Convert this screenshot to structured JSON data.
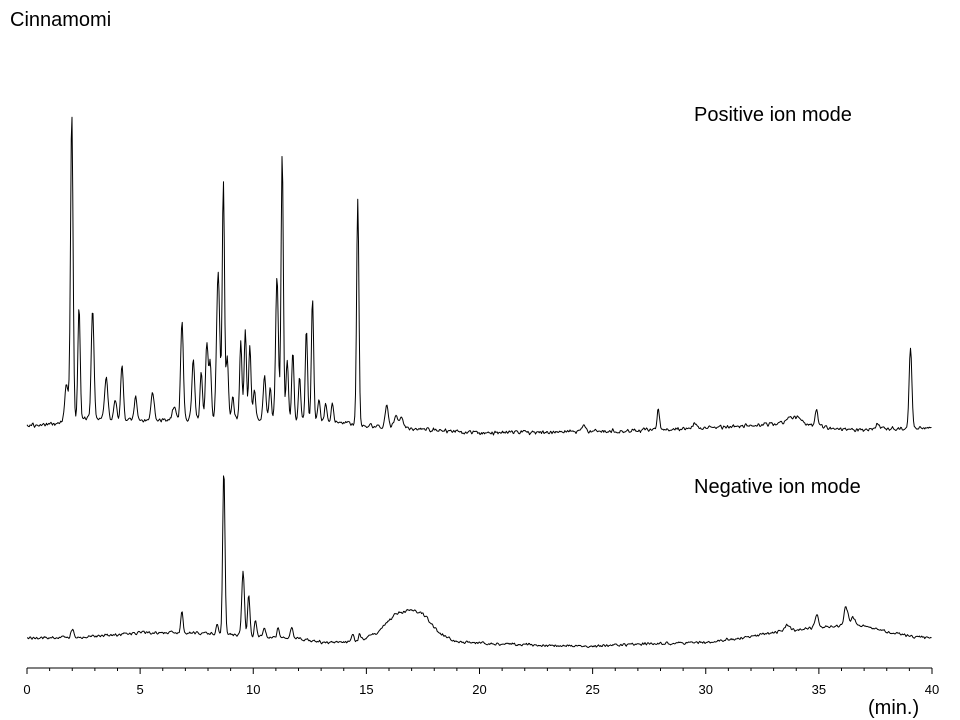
{
  "chart_data": {
    "type": "line",
    "title": "Cinnamomi",
    "xlabel": "(min.)",
    "xlim": [
      0,
      40
    ],
    "x_ticks": [
      0,
      5,
      10,
      15,
      20,
      25,
      30,
      35,
      40
    ],
    "ylim": [
      0,
      100
    ],
    "grid": false,
    "legend": "none",
    "series": [
      {
        "name": "Positive ion mode",
        "color": "#000000",
        "baseline": [
          [
            0,
            1.5
          ],
          [
            1.3,
            2
          ],
          [
            2.2,
            4
          ],
          [
            5,
            3
          ],
          [
            9,
            4
          ],
          [
            13,
            3
          ],
          [
            15,
            1.5
          ],
          [
            16,
            1
          ],
          [
            20,
            -1
          ],
          [
            25,
            -0.5
          ],
          [
            30,
            0.5
          ],
          [
            33,
            2
          ],
          [
            34,
            2.5
          ],
          [
            36,
            0
          ],
          [
            39,
            0.5
          ],
          [
            40,
            1
          ]
        ],
        "peaks": [
          {
            "rt": 1.75,
            "h": 12,
            "w": 0.08
          },
          {
            "rt": 1.98,
            "h": 100,
            "w": 0.055
          },
          {
            "rt": 2.3,
            "h": 37,
            "w": 0.05
          },
          {
            "rt": 2.9,
            "h": 36,
            "w": 0.06
          },
          {
            "rt": 3.5,
            "h": 14,
            "w": 0.07
          },
          {
            "rt": 3.9,
            "h": 7,
            "w": 0.06
          },
          {
            "rt": 4.2,
            "h": 18,
            "w": 0.06
          },
          {
            "rt": 4.8,
            "h": 8,
            "w": 0.06
          },
          {
            "rt": 5.55,
            "h": 9,
            "w": 0.07
          },
          {
            "rt": 6.5,
            "h": 4,
            "w": 0.08
          },
          {
            "rt": 6.85,
            "h": 32,
            "w": 0.06
          },
          {
            "rt": 7.35,
            "h": 20,
            "w": 0.06
          },
          {
            "rt": 7.7,
            "h": 16,
            "w": 0.05
          },
          {
            "rt": 7.95,
            "h": 25,
            "w": 0.06
          },
          {
            "rt": 8.1,
            "h": 18,
            "w": 0.05
          },
          {
            "rt": 8.45,
            "h": 48,
            "w": 0.07
          },
          {
            "rt": 8.68,
            "h": 78,
            "w": 0.05
          },
          {
            "rt": 8.85,
            "h": 20,
            "w": 0.05
          },
          {
            "rt": 9.1,
            "h": 7,
            "w": 0.05
          },
          {
            "rt": 9.45,
            "h": 25,
            "w": 0.05
          },
          {
            "rt": 9.65,
            "h": 29,
            "w": 0.05
          },
          {
            "rt": 9.85,
            "h": 24,
            "w": 0.05
          },
          {
            "rt": 10.05,
            "h": 10,
            "w": 0.05
          },
          {
            "rt": 10.5,
            "h": 14,
            "w": 0.06
          },
          {
            "rt": 10.75,
            "h": 10,
            "w": 0.05
          },
          {
            "rt": 11.05,
            "h": 47,
            "w": 0.06
          },
          {
            "rt": 11.28,
            "h": 87,
            "w": 0.05
          },
          {
            "rt": 11.5,
            "h": 20,
            "w": 0.05
          },
          {
            "rt": 11.75,
            "h": 22,
            "w": 0.05
          },
          {
            "rt": 12.05,
            "h": 14,
            "w": 0.05
          },
          {
            "rt": 12.35,
            "h": 30,
            "w": 0.05
          },
          {
            "rt": 12.62,
            "h": 40,
            "w": 0.05
          },
          {
            "rt": 12.9,
            "h": 7,
            "w": 0.05
          },
          {
            "rt": 13.2,
            "h": 6,
            "w": 0.05
          },
          {
            "rt": 13.5,
            "h": 6,
            "w": 0.05
          },
          {
            "rt": 14.62,
            "h": 74,
            "w": 0.05
          },
          {
            "rt": 15.9,
            "h": 7,
            "w": 0.07
          },
          {
            "rt": 16.3,
            "h": 4,
            "w": 0.08
          },
          {
            "rt": 16.55,
            "h": 3,
            "w": 0.08
          },
          {
            "rt": 24.6,
            "h": 2,
            "w": 0.1
          },
          {
            "rt": 27.9,
            "h": 7,
            "w": 0.05
          },
          {
            "rt": 29.5,
            "h": 2,
            "w": 0.08
          },
          {
            "rt": 33.7,
            "h": 2,
            "w": 0.15
          },
          {
            "rt": 34.1,
            "h": 1.5,
            "w": 0.15
          },
          {
            "rt": 34.9,
            "h": 5,
            "w": 0.06
          },
          {
            "rt": 37.6,
            "h": 1.5,
            "w": 0.08
          },
          {
            "rt": 39.05,
            "h": 27,
            "w": 0.06
          }
        ]
      },
      {
        "name": "Negative ion mode",
        "color": "#000000",
        "baseline": [
          [
            0,
            5
          ],
          [
            3,
            6
          ],
          [
            5,
            8
          ],
          [
            7,
            8
          ],
          [
            9,
            7
          ],
          [
            10,
            6
          ],
          [
            12,
            5
          ],
          [
            13,
            3
          ],
          [
            14.5,
            3
          ],
          [
            15.5,
            8
          ],
          [
            16.3,
            18
          ],
          [
            17,
            20
          ],
          [
            17.5,
            18
          ],
          [
            18.2,
            8
          ],
          [
            19,
            3
          ],
          [
            21,
            2
          ],
          [
            25,
            1
          ],
          [
            27,
            2
          ],
          [
            30,
            3
          ],
          [
            32,
            6
          ],
          [
            33.5,
            9
          ],
          [
            34.5,
            10
          ],
          [
            35.5,
            11
          ],
          [
            36.5,
            13
          ],
          [
            37.5,
            10
          ],
          [
            39,
            6
          ],
          [
            40,
            5
          ]
        ],
        "peaks": [
          {
            "rt": 2.0,
            "h": 4,
            "w": 0.06
          },
          {
            "rt": 6.85,
            "h": 11,
            "w": 0.05
          },
          {
            "rt": 8.4,
            "h": 5,
            "w": 0.05
          },
          {
            "rt": 8.7,
            "h": 86,
            "w": 0.05
          },
          {
            "rt": 9.55,
            "h": 33,
            "w": 0.06
          },
          {
            "rt": 9.8,
            "h": 22,
            "w": 0.05
          },
          {
            "rt": 10.1,
            "h": 9,
            "w": 0.05
          },
          {
            "rt": 10.5,
            "h": 5,
            "w": 0.05
          },
          {
            "rt": 11.1,
            "h": 5,
            "w": 0.05
          },
          {
            "rt": 11.7,
            "h": 6,
            "w": 0.05
          },
          {
            "rt": 14.4,
            "h": 4,
            "w": 0.05
          },
          {
            "rt": 14.7,
            "h": 3,
            "w": 0.05
          },
          {
            "rt": 33.6,
            "h": 3,
            "w": 0.1
          },
          {
            "rt": 34.9,
            "h": 7,
            "w": 0.08
          },
          {
            "rt": 36.2,
            "h": 9,
            "w": 0.08
          },
          {
            "rt": 36.5,
            "h": 3,
            "w": 0.08
          }
        ]
      }
    ]
  }
}
